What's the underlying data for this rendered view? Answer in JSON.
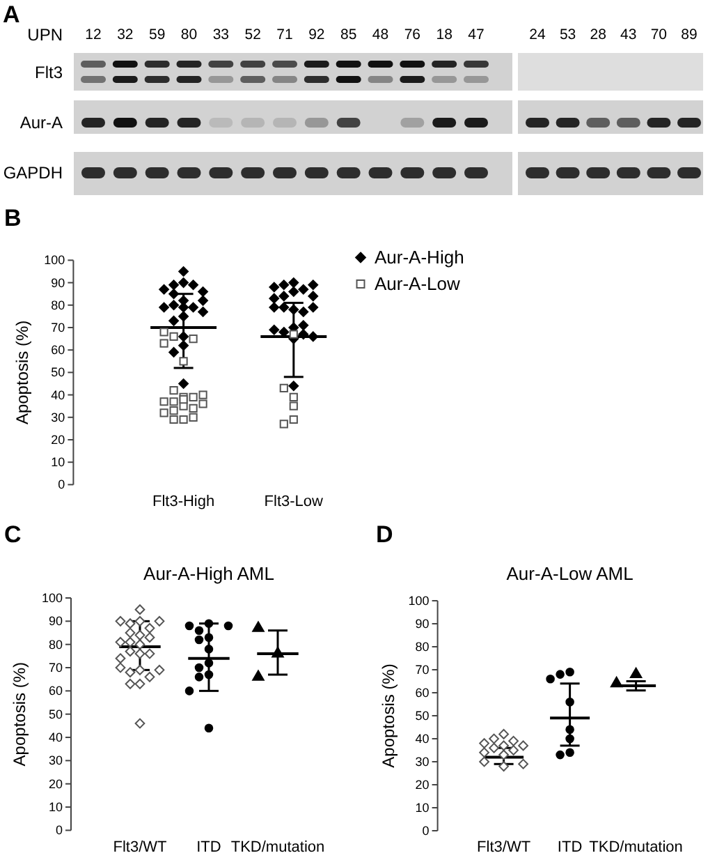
{
  "chart_data": [
    {
      "type": "other",
      "annotations": [
        "A",
        "UPN",
        "Flt3",
        "Aur-A",
        "GAPDH"
      ],
      "categories": [
        "12",
        "32",
        "59",
        "80",
        "33",
        "52",
        "71",
        "92",
        "85",
        "48",
        "76",
        "18",
        "47",
        "24",
        "53",
        "28",
        "43",
        "70",
        "89"
      ]
    },
    {
      "type": "scatter",
      "annotations": [
        "B"
      ],
      "ylabel": "Apoptosis (%)",
      "categories": [
        "Flt3-High",
        "Flt3-Low"
      ],
      "ylim": [
        0,
        100
      ],
      "yticks": [
        0,
        10,
        20,
        30,
        40,
        50,
        60,
        70,
        80,
        90,
        100
      ],
      "legend": "top right",
      "series": [
        {
          "name": "Aur-A-High",
          "color": "#000000",
          "marker": "diamond",
          "x": [
            "Flt3-High",
            "Flt3-High",
            "Flt3-High",
            "Flt3-High",
            "Flt3-High",
            "Flt3-High",
            "Flt3-High",
            "Flt3-High",
            "Flt3-High",
            "Flt3-High",
            "Flt3-High",
            "Flt3-High",
            "Flt3-High",
            "Flt3-High",
            "Flt3-High",
            "Flt3-High",
            "Flt3-High",
            "Flt3-High",
            "Flt3-High",
            "Flt3-High",
            "Flt3-Low",
            "Flt3-Low",
            "Flt3-Low",
            "Flt3-Low",
            "Flt3-Low",
            "Flt3-Low",
            "Flt3-Low",
            "Flt3-Low",
            "Flt3-Low",
            "Flt3-Low",
            "Flt3-Low",
            "Flt3-Low",
            "Flt3-Low",
            "Flt3-Low",
            "Flt3-Low",
            "Flt3-Low",
            "Flt3-Low",
            "Flt3-Low",
            "Flt3-Low",
            "Flt3-Low",
            "Flt3-Low",
            "Flt3-Low"
          ],
          "values": [
            95,
            90,
            89,
            87,
            82,
            80,
            79,
            45,
            86,
            79,
            62,
            89,
            85,
            82,
            79,
            77,
            75,
            73,
            66,
            59,
            90,
            89,
            87,
            83,
            79,
            78,
            70,
            68,
            65,
            88,
            86,
            84,
            79,
            89,
            84,
            79,
            77,
            71,
            69,
            67,
            66,
            44
          ]
        },
        {
          "name": "Aur-A-Low",
          "color": "#ffffff",
          "marker": "square",
          "x": [
            "Flt3-High",
            "Flt3-High",
            "Flt3-High",
            "Flt3-High",
            "Flt3-High",
            "Flt3-High",
            "Flt3-High",
            "Flt3-High",
            "Flt3-High",
            "Flt3-High",
            "Flt3-High",
            "Flt3-High",
            "Flt3-High",
            "Flt3-High",
            "Flt3-High",
            "Flt3-High",
            "Flt3-High",
            "Flt3-High",
            "Flt3-High",
            "Flt3-High",
            "Flt3-Low",
            "Flt3-Low",
            "Flt3-Low",
            "Flt3-Low",
            "Flt3-Low",
            "Flt3-Low"
          ],
          "values": [
            66,
            65,
            63,
            39,
            37,
            35,
            33,
            29,
            68,
            39,
            37,
            55,
            42,
            40,
            38,
            36,
            34,
            32,
            30,
            29,
            67,
            39,
            35,
            29,
            43,
            27
          ]
        },
        {
          "type": "box",
          "color": "#000000",
          "boxes": [
            {
              "low": 52,
              "q1": 70,
              "median": 70,
              "q3": 70,
              "high": 85
            },
            {
              "low": 48,
              "q1": 66,
              "median": 66,
              "q3": 66,
              "high": 81
            }
          ]
        }
      ]
    },
    {
      "type": "scatter",
      "annotations": [
        "C"
      ],
      "title": "Aur-A-High AML",
      "ylabel": "Apoptosis (%)",
      "categories": [
        "Flt3/WT",
        "ITD",
        "TKD/mutation"
      ],
      "ylim": [
        0,
        100
      ],
      "yticks": [
        0,
        10,
        20,
        30,
        40,
        50,
        60,
        70,
        80,
        90,
        100
      ],
      "series": [
        {
          "color": "#ffffff",
          "marker": "diamond",
          "x": [
            "Flt3/WT",
            "Flt3/WT",
            "Flt3/WT",
            "Flt3/WT",
            "Flt3/WT",
            "Flt3/WT",
            "Flt3/WT",
            "Flt3/WT",
            "Flt3/WT",
            "Flt3/WT",
            "Flt3/WT",
            "Flt3/WT",
            "Flt3/WT",
            "Flt3/WT",
            "Flt3/WT",
            "Flt3/WT",
            "Flt3/WT",
            "Flt3/WT",
            "Flt3/WT",
            "Flt3/WT",
            "Flt3/WT",
            "Flt3/WT",
            "Flt3/WT",
            "Flt3/WT"
          ],
          "values": [
            95,
            90,
            90,
            90,
            89,
            87,
            84,
            85,
            83,
            81,
            81,
            80,
            77,
            76,
            76,
            74,
            70,
            69,
            69,
            68,
            66,
            63,
            63,
            46
          ]
        },
        {
          "color": "#000000",
          "marker": "circle",
          "x": [
            "ITD",
            "ITD",
            "ITD",
            "ITD",
            "ITD",
            "ITD",
            "ITD",
            "ITD",
            "ITD",
            "ITD",
            "ITD",
            "ITD",
            "ITD"
          ],
          "values": [
            88,
            88,
            89,
            86,
            83,
            82,
            78,
            72,
            70,
            67,
            66,
            60,
            44
          ]
        },
        {
          "color": "#000000",
          "marker": "triangle",
          "x": [
            "TKD/mutation",
            "TKD/mutation",
            "TKD/mutation"
          ],
          "values": [
            87,
            76,
            66
          ]
        },
        {
          "type": "box",
          "color": "#000000",
          "boxes": [
            {
              "low": 69,
              "q1": 79,
              "median": 79,
              "q3": 79,
              "high": 90
            },
            {
              "low": 60,
              "q1": 74,
              "median": 74,
              "q3": 74,
              "high": 89
            },
            {
              "low": 67,
              "q1": 76,
              "median": 76,
              "q3": 76,
              "high": 86
            }
          ]
        }
      ]
    },
    {
      "type": "scatter",
      "annotations": [
        "D"
      ],
      "title": "Aur-A-Low AML",
      "ylabel": "Apoptosis (%)",
      "categories": [
        "Flt3/WT",
        "ITD",
        "TKD/mutation"
      ],
      "ylim": [
        0,
        100
      ],
      "yticks": [
        0,
        10,
        20,
        30,
        40,
        50,
        60,
        70,
        80,
        90,
        100
      ],
      "series": [
        {
          "color": "#ffffff",
          "marker": "diamond",
          "x": [
            "Flt3/WT",
            "Flt3/WT",
            "Flt3/WT",
            "Flt3/WT",
            "Flt3/WT",
            "Flt3/WT",
            "Flt3/WT",
            "Flt3/WT",
            "Flt3/WT",
            "Flt3/WT",
            "Flt3/WT",
            "Flt3/WT",
            "Flt3/WT"
          ],
          "values": [
            42,
            40,
            39,
            38,
            37,
            37,
            36,
            35,
            34,
            33,
            30,
            29,
            28
          ]
        },
        {
          "color": "#000000",
          "marker": "circle",
          "x": [
            "ITD",
            "ITD",
            "ITD",
            "ITD",
            "ITD",
            "ITD",
            "ITD",
            "ITD"
          ],
          "values": [
            69,
            68,
            66,
            56,
            44,
            40,
            34,
            33
          ]
        },
        {
          "color": "#000000",
          "marker": "triangle",
          "x": [
            "TKD/mutation",
            "TKD/mutation"
          ],
          "values": [
            68,
            64
          ]
        },
        {
          "type": "box",
          "color": "#000000",
          "boxes": [
            {
              "low": 29,
              "q1": 32,
              "median": 32,
              "q3": 32,
              "high": 36
            },
            {
              "low": 37,
              "q1": 49,
              "median": 49,
              "q3": 49,
              "high": 64
            },
            {
              "low": 61,
              "q1": 63,
              "median": 63,
              "q3": 63,
              "high": 65
            }
          ]
        }
      ]
    }
  ]
}
